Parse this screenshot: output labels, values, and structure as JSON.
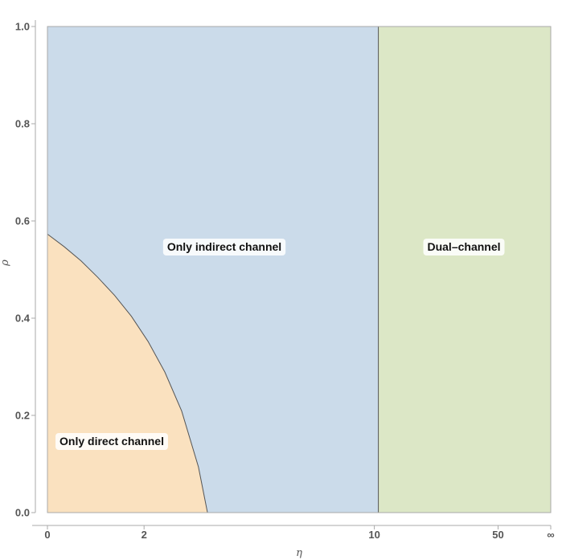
{
  "chart_data": {
    "type": "area",
    "title": "",
    "xlabel": "η",
    "ylabel": "ρ",
    "ylim": [
      0,
      1
    ],
    "x_ticks": [
      {
        "label": "0",
        "t": 0.0
      },
      {
        "label": "2",
        "t": 0.192
      },
      {
        "label": "10",
        "t": 0.6495
      },
      {
        "label": "50",
        "t": 0.8954
      },
      {
        "label": "∞",
        "t": 1.0
      }
    ],
    "y_ticks": [
      "0.0",
      "0.2",
      "0.4",
      "0.6",
      "0.8",
      "1.0"
    ],
    "boundaries": {
      "direct_indirect_curve": {
        "x_t": [
          0,
          0.0333,
          0.0667,
          0.1,
          0.1333,
          0.1667,
          0.2,
          0.2333,
          0.2667,
          0.3,
          0.318
        ],
        "y": [
          0.573,
          0.547,
          0.518,
          0.484,
          0.447,
          0.404,
          0.352,
          0.289,
          0.209,
          0.094,
          0.0
        ]
      },
      "indirect_dual_x_t": 0.6575
    },
    "regions": [
      {
        "name": "Only direct channel",
        "color": "#fae1bf"
      },
      {
        "name": "Only indirect channel",
        "color": "#cbdbea"
      },
      {
        "name": "Dual–channel",
        "color": "#dce7c6"
      }
    ],
    "colors": {
      "boundary": "#555555",
      "frame": "#aaaaaa",
      "label_bg": "#ffffff"
    }
  }
}
